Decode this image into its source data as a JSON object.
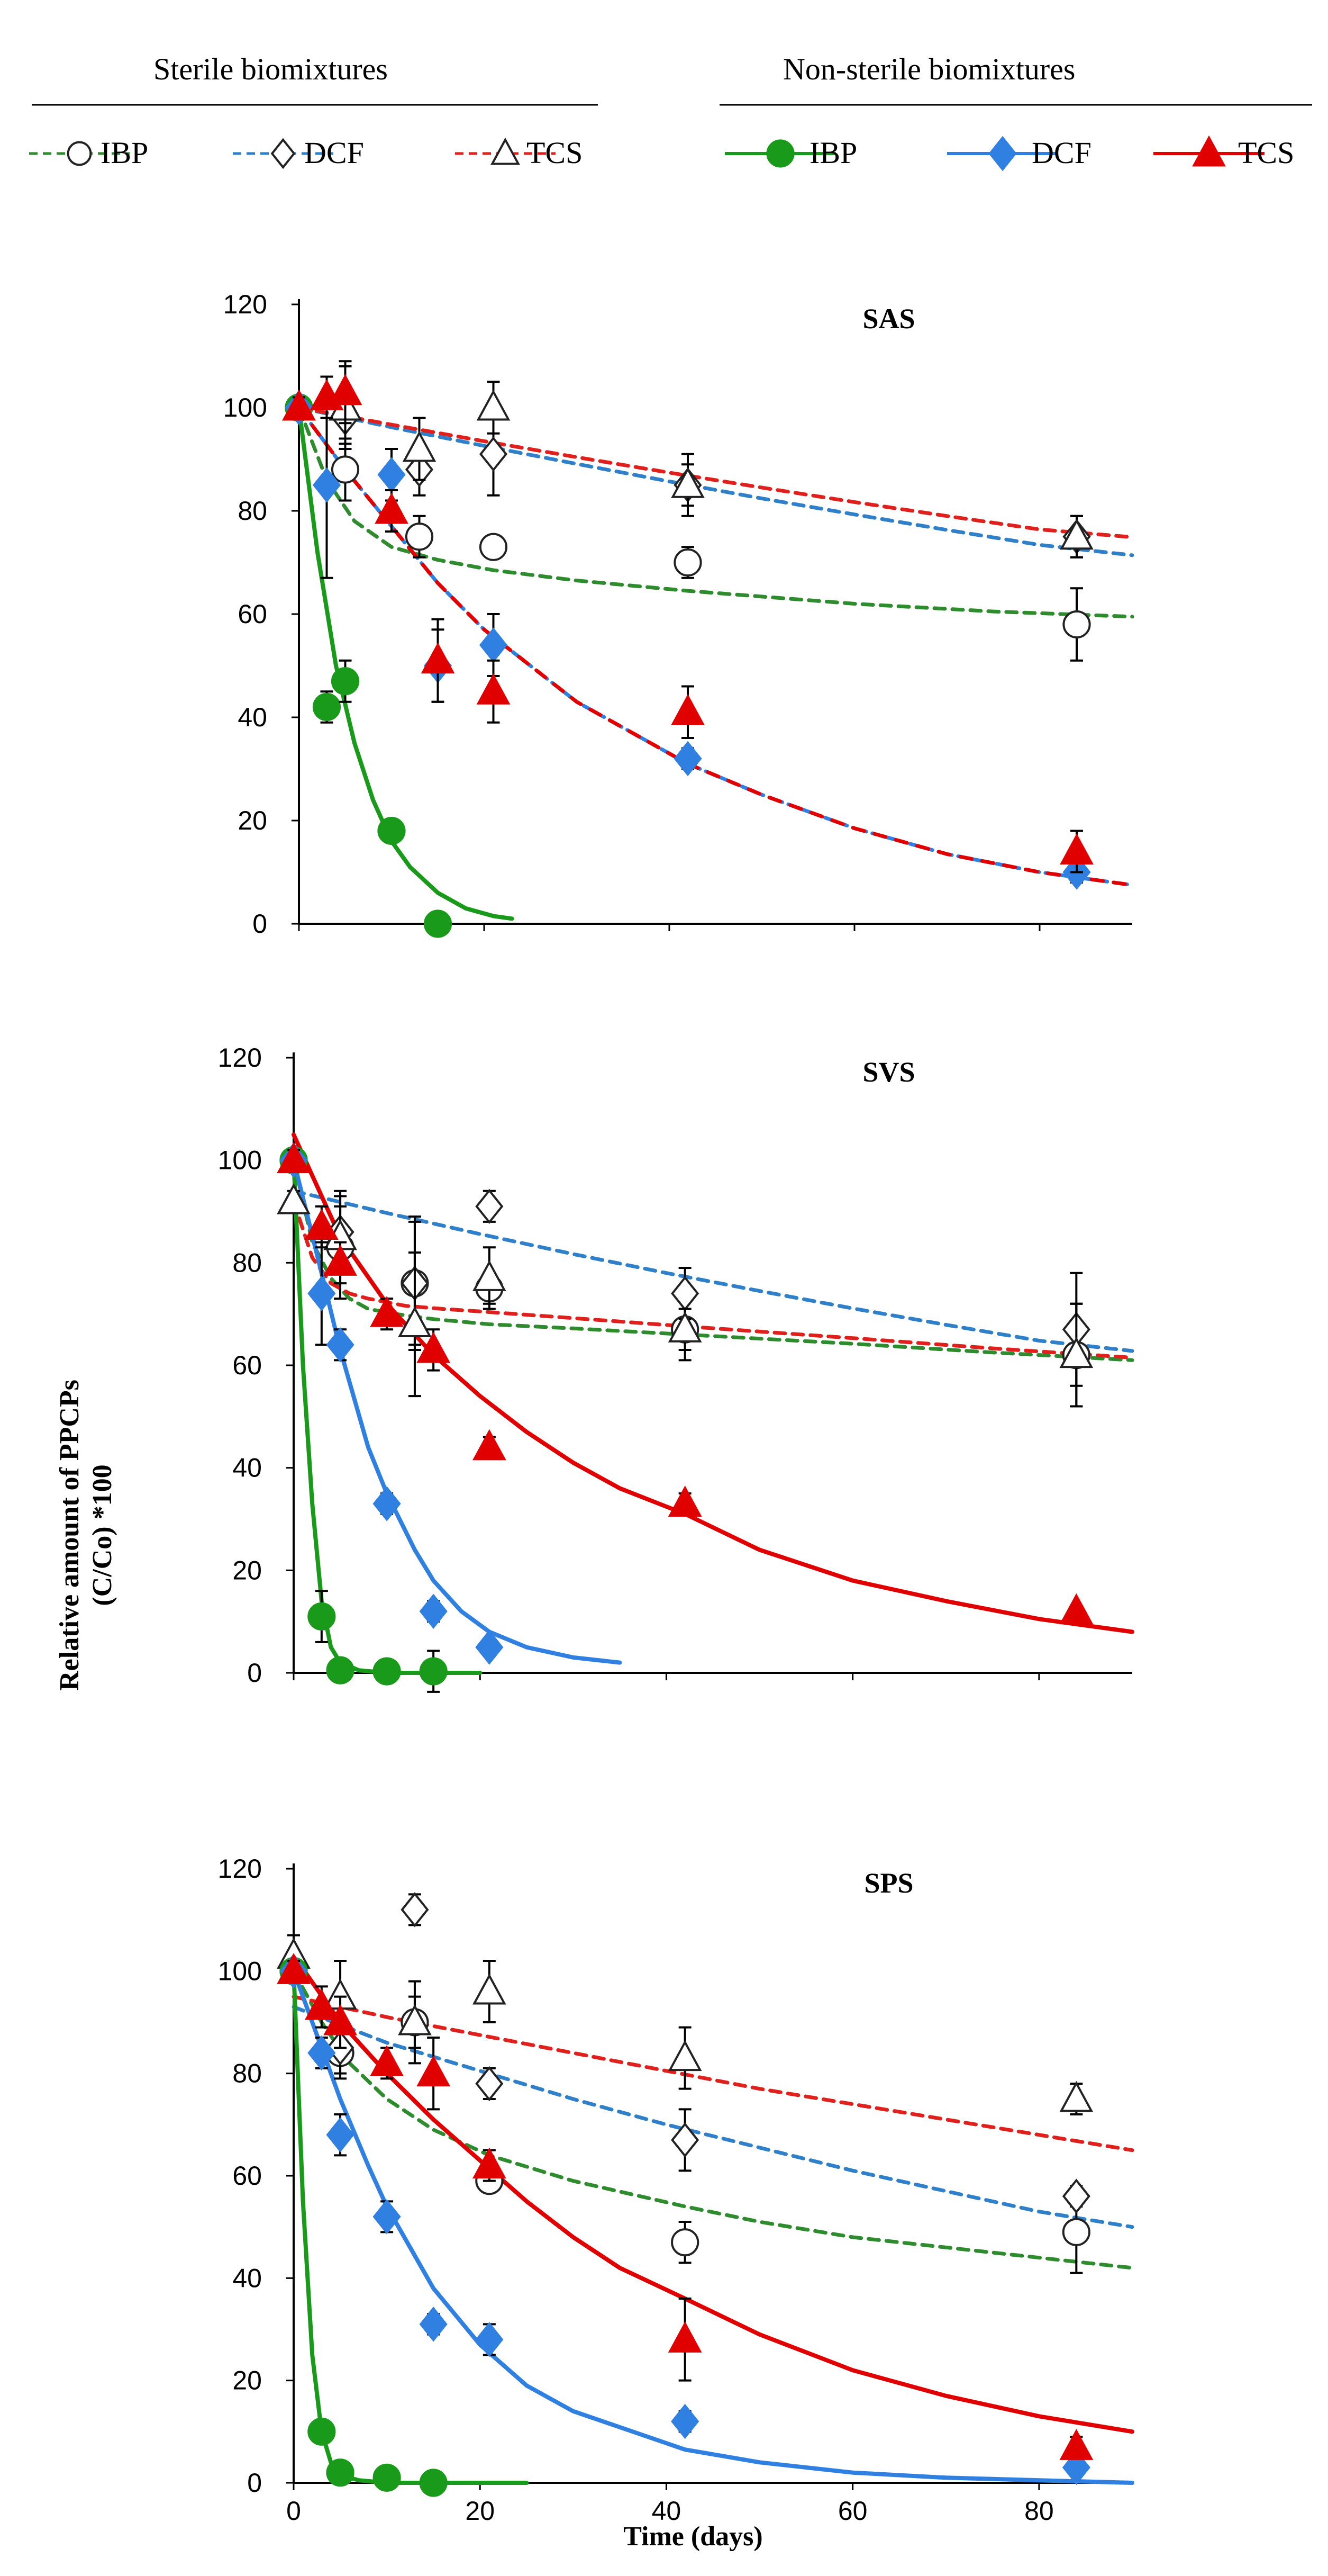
{
  "legend": {
    "sterile_title": "Sterile biomixtures",
    "nonsterile_title": "Non-sterile biomixtures",
    "sterile": [
      {
        "label": "IBP",
        "marker": "circle-open",
        "color": "#2e8b2e"
      },
      {
        "label": "DCF",
        "marker": "diamond-open",
        "color": "#2f80c8"
      },
      {
        "label": "TCS",
        "marker": "triangle-open",
        "color": "#e0201c"
      }
    ],
    "nonsterile": [
      {
        "label": "IBP",
        "marker": "circle",
        "color": "#1a9a1a"
      },
      {
        "label": "DCF",
        "marker": "diamond",
        "color": "#2f80e0"
      },
      {
        "label": "TCS",
        "marker": "triangle",
        "color": "#e00000"
      }
    ]
  },
  "axes": {
    "ylabel_line1": "Relative amount of PPCPs",
    "ylabel_line2": "(C/Co) *100",
    "xlabel": "Time (days)",
    "x_ticks": [
      "0",
      "20",
      "40",
      "60",
      "80"
    ],
    "y_ticks": [
      "0",
      "20",
      "40",
      "60",
      "80",
      "100",
      "120"
    ]
  },
  "chart_data": [
    {
      "type": "scatter",
      "title": "SAS",
      "xlabel": "Time (days)",
      "ylabel": "Relative amount of PPCPs (C/Co) *100",
      "xlim": [
        0,
        90
      ],
      "ylim": [
        0,
        120
      ],
      "points": {
        "sterile_IBP": {
          "x": [
            0,
            5,
            13,
            21,
            42,
            84
          ],
          "y": [
            100,
            88,
            75,
            73,
            70,
            58
          ],
          "err": [
            2,
            6,
            4,
            2,
            3,
            7
          ]
        },
        "sterile_DCF": {
          "x": [
            0,
            5,
            13,
            21,
            42,
            84
          ],
          "y": [
            100,
            98,
            88,
            91,
            85,
            75
          ],
          "err": [
            2,
            5,
            5,
            8,
            4,
            4
          ]
        },
        "sterile_TCS": {
          "x": [
            0,
            5,
            13,
            21,
            42,
            84
          ],
          "y": [
            100,
            100,
            92,
            100,
            85,
            75
          ],
          "err": [
            2,
            8,
            6,
            5,
            6,
            4
          ]
        },
        "nonsterile_IBP": {
          "x": [
            0,
            3,
            5,
            10,
            15
          ],
          "y": [
            100,
            42,
            47,
            18,
            0
          ],
          "err": [
            2,
            3,
            4,
            1,
            1
          ]
        },
        "nonsterile_DCF": {
          "x": [
            0,
            3,
            10,
            15,
            21,
            42,
            84
          ],
          "y": [
            100,
            85,
            87,
            50,
            54,
            32,
            10
          ],
          "err": [
            2,
            18,
            5,
            7,
            6,
            2,
            2
          ]
        },
        "nonsterile_TCS": {
          "x": [
            0,
            3,
            5,
            10,
            15,
            21,
            42,
            84
          ],
          "y": [
            100,
            102,
            103,
            80,
            51,
            45,
            41,
            14
          ],
          "err": [
            2,
            4,
            6,
            4,
            8,
            6,
            5,
            4
          ]
        }
      },
      "fits": {
        "sterile_IBP": {
          "x": [
            0,
            3,
            6,
            10,
            15,
            21,
            30,
            42,
            60,
            75,
            90
          ],
          "y": [
            100,
            86,
            78,
            73,
            70.5,
            68.5,
            66.5,
            64.5,
            62,
            60.5,
            59.5
          ]
        },
        "sterile_DCF": {
          "x": [
            0,
            10,
            20,
            30,
            40,
            50,
            60,
            70,
            80,
            90
          ],
          "y": [
            100,
            96.2,
            92.6,
            89.1,
            85.7,
            82.4,
            79.3,
            76.3,
            73.4,
            71.4
          ]
        },
        "sterile_TCS": {
          "x": [
            0,
            10,
            20,
            30,
            40,
            50,
            60,
            70,
            80,
            90
          ],
          "y": [
            100,
            96.7,
            93.5,
            90.4,
            87.4,
            84.5,
            81.7,
            79,
            76.4,
            74.9
          ]
        },
        "nonsterile_IBP": {
          "x": [
            0,
            2,
            4,
            6,
            8,
            10,
            12,
            15,
            18,
            21,
            23
          ],
          "y": [
            100,
            72,
            50,
            35,
            24,
            16,
            11,
            6,
            3,
            1.5,
            1
          ]
        },
        "nonsterile_DCF": {
          "x": [
            0,
            5,
            10,
            15,
            20,
            30,
            42,
            50,
            60,
            70,
            80,
            90
          ],
          "y": [
            100,
            88,
            77,
            66,
            57,
            43,
            31,
            25,
            18.5,
            13.5,
            10,
            7.5
          ]
        },
        "nonsterile_TCS": {
          "x": [
            0,
            5,
            10,
            15,
            20,
            30,
            42,
            50,
            60,
            70,
            80,
            90
          ],
          "y": [
            100,
            88,
            77,
            66,
            57,
            43,
            31,
            25,
            18.5,
            13.5,
            10,
            7.5
          ]
        }
      }
    },
    {
      "type": "scatter",
      "title": "SVS",
      "xlabel": "Time (days)",
      "ylabel": "Relative amount of PPCPs (C/Co) *100",
      "xlim": [
        0,
        90
      ],
      "ylim": [
        0,
        120
      ],
      "points": {
        "sterile_IBP": {
          "x": [
            0,
            5,
            13,
            21,
            42,
            84
          ],
          "y": [
            100,
            83,
            76,
            75,
            67,
            62
          ],
          "err": [
            2,
            10,
            12,
            3,
            6,
            10
          ]
        },
        "sterile_DCF": {
          "x": [
            0,
            5,
            13,
            21,
            42,
            84
          ],
          "y": [
            100,
            86,
            76,
            91,
            74,
            67
          ],
          "err": [
            2,
            8,
            13,
            3,
            5,
            11
          ]
        },
        "sterile_TCS": {
          "x": [
            0,
            5,
            13,
            21,
            42,
            84
          ],
          "y": [
            92,
            85,
            68,
            77,
            67,
            62
          ],
          "err": [
            2,
            6,
            14,
            6,
            4,
            10
          ]
        },
        "nonsterile_IBP": {
          "x": [
            0,
            3,
            5,
            10,
            15
          ],
          "y": [
            100,
            11,
            0.5,
            0.3,
            0.3
          ],
          "err": [
            2,
            5,
            1,
            1,
            4
          ]
        },
        "nonsterile_DCF": {
          "x": [
            0,
            3,
            5,
            10,
            15,
            21
          ],
          "y": [
            100,
            74,
            64,
            33,
            12,
            5
          ],
          "err": [
            2,
            10,
            3,
            2,
            2,
            1
          ]
        },
        "nonsterile_TCS": {
          "x": [
            0,
            3,
            5,
            10,
            15,
            21,
            42,
            84
          ],
          "y": [
            100,
            87,
            80,
            70,
            63,
            44,
            33,
            12
          ],
          "err": [
            2,
            4,
            4,
            3,
            4,
            2,
            2,
            1
          ]
        }
      },
      "fits": {
        "sterile_IBP": {
          "x": [
            0,
            2,
            4,
            6,
            8,
            11,
            15,
            21,
            30,
            42,
            60,
            75,
            90
          ],
          "y": [
            100,
            84,
            77,
            73,
            71,
            70,
            69,
            68,
            67.2,
            66,
            64.2,
            62.5,
            61
          ]
        },
        "sterile_DCF": {
          "x": [
            0,
            10,
            20,
            30,
            40,
            50,
            60,
            70,
            80,
            90
          ],
          "y": [
            94,
            89.7,
            85.6,
            81.7,
            78,
            74.5,
            71.1,
            67.9,
            64.8,
            62.8
          ]
        },
        "sterile_TCS": {
          "x": [
            0,
            2,
            4,
            6,
            8,
            12,
            16,
            20,
            30,
            42,
            60,
            75,
            90
          ],
          "y": [
            92,
            81,
            76,
            74,
            73,
            71.6,
            71,
            70.5,
            69.2,
            67.6,
            65.3,
            63.3,
            61.5
          ]
        },
        "nonsterile_IBP": {
          "x": [
            0,
            1,
            2,
            3,
            4,
            5,
            7,
            10,
            15,
            20
          ],
          "y": [
            100,
            60,
            33,
            14,
            5,
            2,
            0.5,
            0,
            0,
            0
          ]
        },
        "nonsterile_DCF": {
          "x": [
            0,
            3,
            5,
            8,
            10,
            13,
            15,
            18,
            21,
            25,
            30,
            35
          ],
          "y": [
            100,
            78,
            63,
            44,
            35,
            24,
            18,
            12,
            8,
            5,
            3,
            2
          ]
        },
        "nonsterile_TCS": {
          "x": [
            0,
            5,
            10,
            15,
            20,
            25,
            30,
            35,
            42,
            50,
            60,
            70,
            80,
            90
          ],
          "y": [
            105,
            85,
            72,
            62,
            54,
            47,
            41,
            36,
            31,
            24,
            18,
            14,
            10.5,
            8
          ]
        }
      }
    },
    {
      "type": "scatter",
      "title": "SPS",
      "xlabel": "Time (days)",
      "ylabel": "Relative amount of PPCPs (C/Co) *100",
      "xlim": [
        0,
        90
      ],
      "ylim": [
        0,
        120
      ],
      "points": {
        "sterile_IBP": {
          "x": [
            0,
            5,
            13,
            21,
            42,
            84
          ],
          "y": [
            100,
            84,
            90,
            59,
            47,
            49
          ],
          "err": [
            2,
            5,
            8,
            2,
            4,
            8
          ]
        },
        "sterile_DCF": {
          "x": [
            0,
            5,
            13,
            21,
            42,
            84
          ],
          "y": [
            100,
            85,
            112,
            78,
            67,
            56
          ],
          "err": [
            2,
            5,
            3,
            3,
            6,
            2
          ]
        },
        "sterile_TCS": {
          "x": [
            0,
            5,
            13,
            21,
            42,
            84
          ],
          "y": [
            103,
            95,
            90,
            96,
            83,
            75
          ],
          "err": [
            4,
            7,
            5,
            6,
            6,
            3
          ]
        },
        "nonsterile_IBP": {
          "x": [
            0,
            3,
            5,
            10,
            15
          ],
          "y": [
            100,
            10,
            2,
            1,
            0
          ],
          "err": [
            2,
            1,
            1,
            1,
            1
          ]
        },
        "nonsterile_DCF": {
          "x": [
            0,
            3,
            5,
            10,
            15,
            21,
            42,
            84
          ],
          "y": [
            100,
            84,
            68,
            52,
            31,
            28,
            12,
            3
          ],
          "err": [
            2,
            3,
            4,
            3,
            2,
            3,
            2,
            1
          ]
        },
        "nonsterile_TCS": {
          "x": [
            0,
            3,
            5,
            10,
            15,
            21,
            42,
            84
          ],
          "y": [
            100,
            93,
            90,
            82,
            80,
            62,
            28,
            7
          ],
          "err": [
            2,
            4,
            5,
            3,
            7,
            3,
            8,
            2
          ]
        }
      },
      "fits": {
        "sterile_IBP": {
          "x": [
            0,
            3,
            6,
            10,
            15,
            21,
            30,
            42,
            50,
            60,
            70,
            80,
            90
          ],
          "y": [
            100,
            90,
            82,
            75,
            69,
            64,
            59,
            54,
            51,
            48,
            46,
            44,
            42
          ]
        },
        "sterile_DCF": {
          "x": [
            0,
            10,
            20,
            30,
            40,
            50,
            60,
            70,
            80,
            90
          ],
          "y": [
            93,
            86,
            80.5,
            75,
            70,
            65.5,
            61,
            57,
            53,
            50
          ]
        },
        "sterile_TCS": {
          "x": [
            0,
            10,
            20,
            30,
            40,
            50,
            60,
            70,
            80,
            90
          ],
          "y": [
            95,
            91,
            87.5,
            84,
            80.5,
            77,
            74,
            71,
            68,
            65
          ]
        },
        "nonsterile_IBP": {
          "x": [
            0,
            1,
            2,
            3,
            4,
            5,
            7,
            10,
            15,
            20,
            25
          ],
          "y": [
            100,
            55,
            25,
            10,
            4,
            1.5,
            0.5,
            0,
            0,
            0,
            0
          ]
        },
        "nonsterile_DCF": {
          "x": [
            0,
            3,
            5,
            8,
            10,
            15,
            20,
            25,
            30,
            42,
            50,
            60,
            70,
            80,
            90
          ],
          "y": [
            100,
            85,
            75,
            62,
            54,
            38,
            27,
            19,
            14,
            6.5,
            4,
            2,
            1,
            0.5,
            0
          ]
        },
        "nonsterile_TCS": {
          "x": [
            0,
            5,
            10,
            15,
            20,
            25,
            30,
            35,
            42,
            50,
            60,
            70,
            80,
            90
          ],
          "y": [
            103,
            90,
            80,
            71,
            63,
            55,
            48,
            42,
            36,
            29,
            22,
            17,
            13,
            10
          ]
        }
      }
    }
  ]
}
